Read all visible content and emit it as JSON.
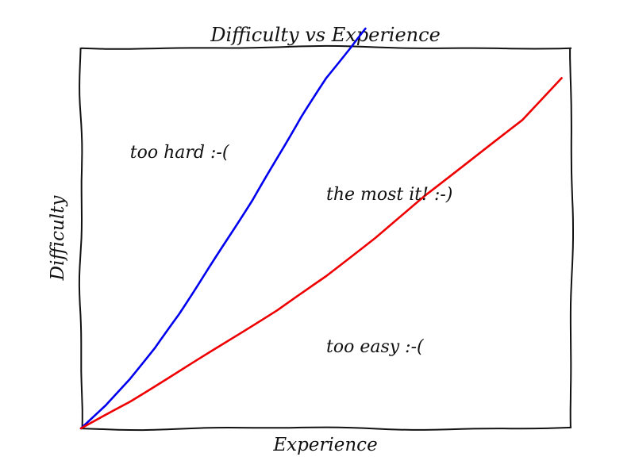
{
  "chart_data": {
    "type": "line",
    "title": "Difficulty vs Experience",
    "xlabel": "Experience",
    "ylabel": "Difficulty",
    "xlim": [
      0,
      1
    ],
    "ylim": [
      0,
      1
    ],
    "grid": false,
    "ticks": false,
    "series": [
      {
        "color": "#0000ee",
        "x": [
          0,
          0.05,
          0.1,
          0.15,
          0.2,
          0.25,
          0.3,
          0.35,
          0.4,
          0.45,
          0.5,
          0.55,
          0.58
        ],
        "y": [
          0,
          0.06,
          0.13,
          0.21,
          0.3,
          0.4,
          0.5,
          0.6,
          0.71,
          0.82,
          0.92,
          1.0,
          1.05
        ]
      },
      {
        "color": "#ee0000",
        "x": [
          0,
          0.1,
          0.2,
          0.3,
          0.4,
          0.5,
          0.6,
          0.7,
          0.8,
          0.9,
          0.98
        ],
        "y": [
          0,
          0.07,
          0.15,
          0.23,
          0.31,
          0.4,
          0.5,
          0.61,
          0.71,
          0.81,
          0.92
        ]
      }
    ],
    "annotations": [
      {
        "text": "too hard :-(",
        "x": 0.1,
        "y": 0.71
      },
      {
        "text": "the most it! :-)",
        "x": 0.5,
        "y": 0.6
      },
      {
        "text": "too easy :-(",
        "x": 0.5,
        "y": 0.2
      }
    ]
  }
}
